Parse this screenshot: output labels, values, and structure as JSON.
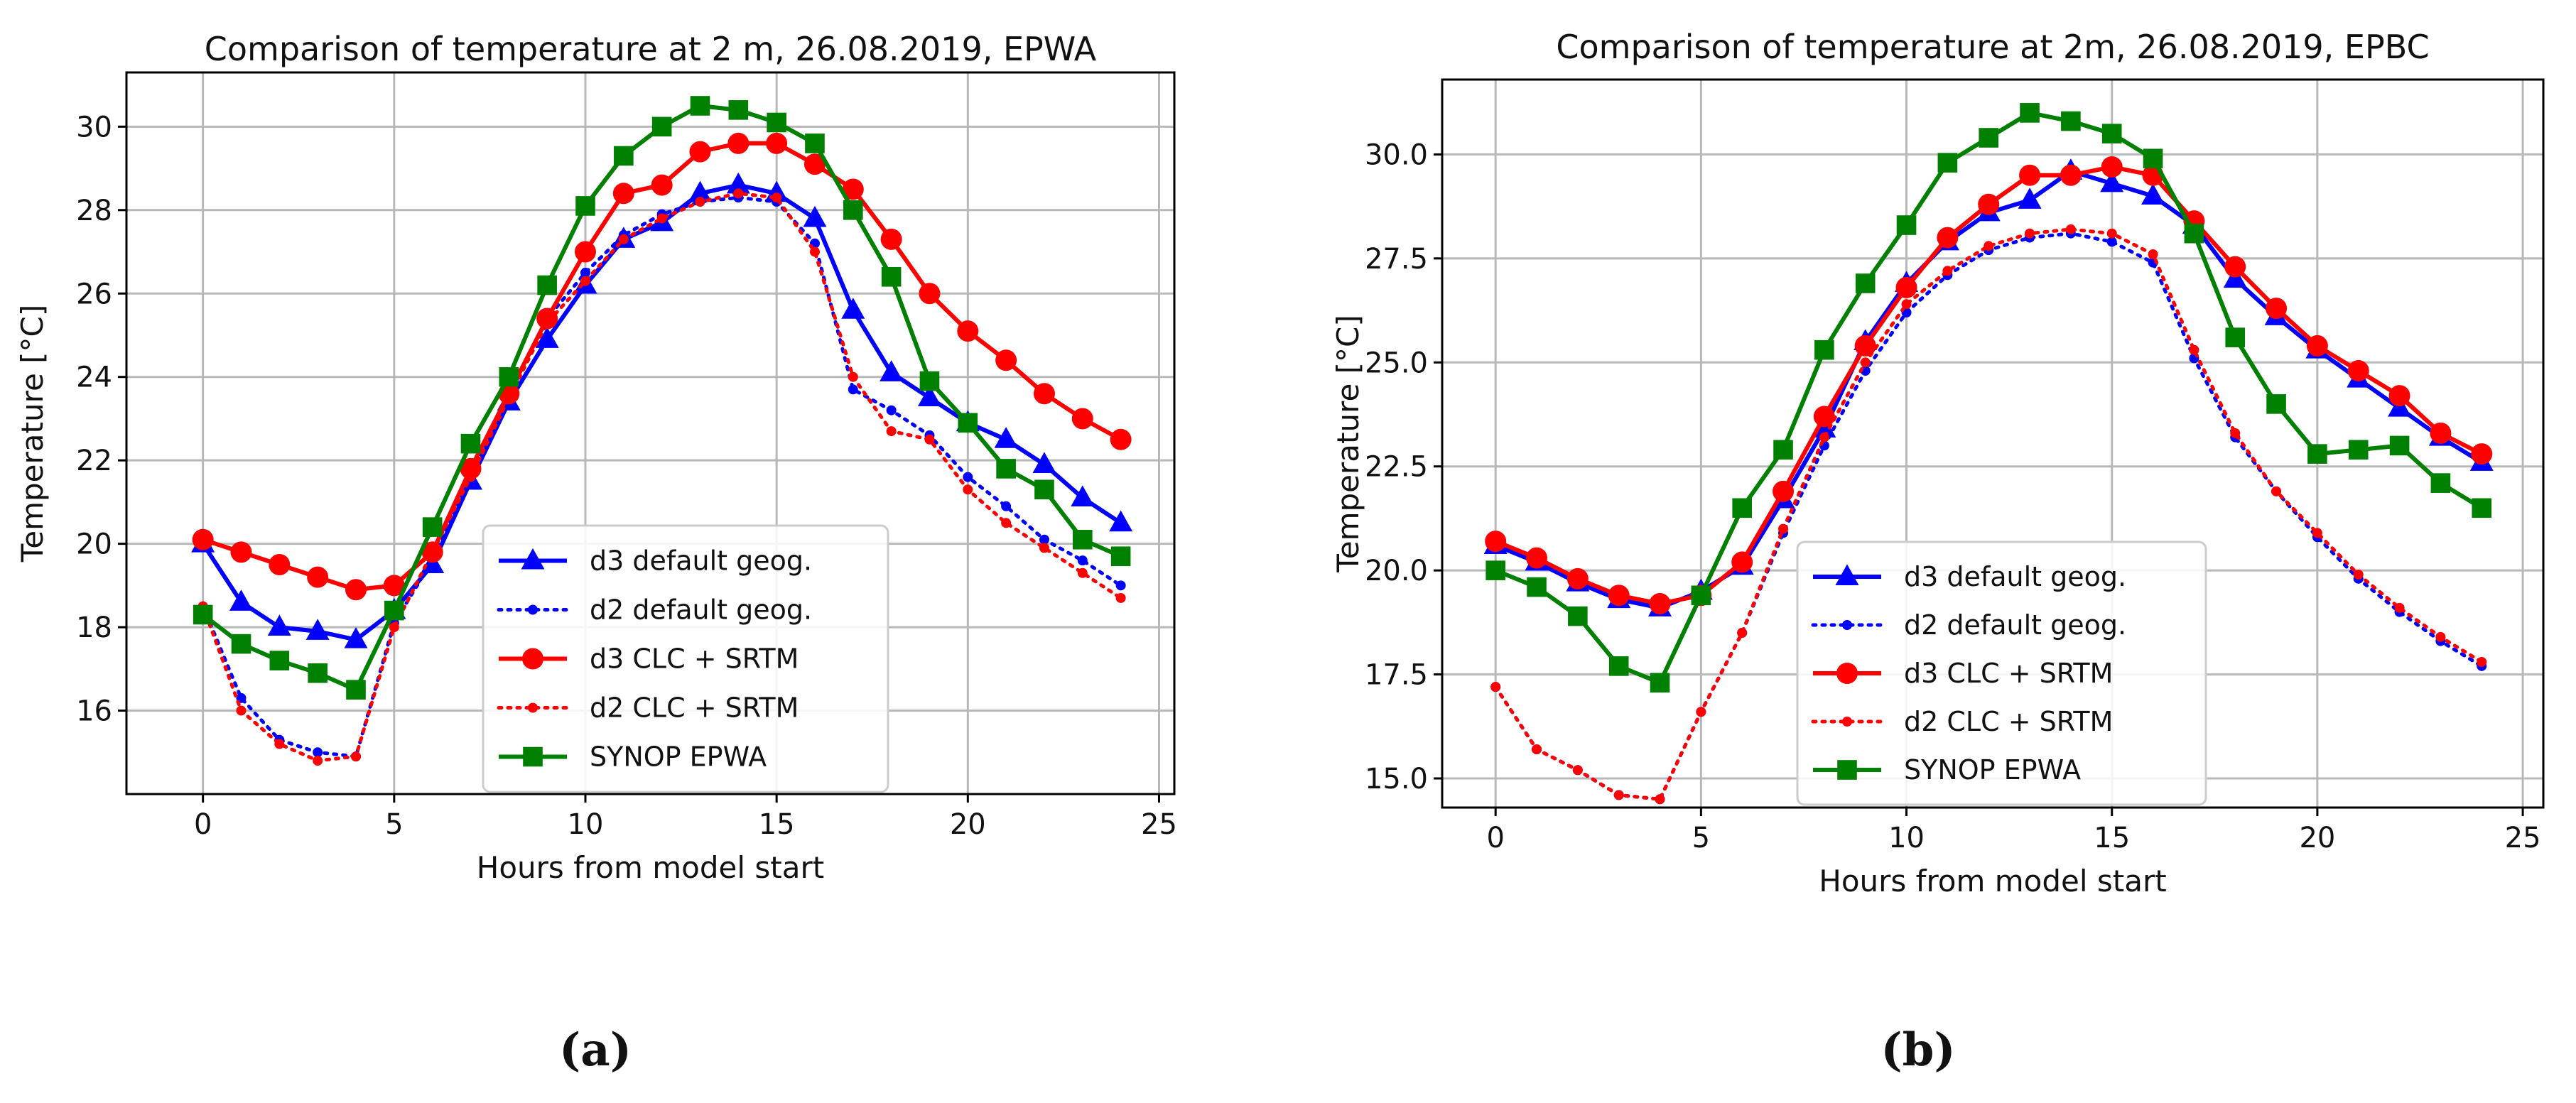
{
  "chart_data": [
    {
      "type": "line",
      "panel_label": "(a)",
      "title": "Comparison of temperature at 2 m, 26.08.2019, EPWA",
      "xlabel": "Hours from model start",
      "ylabel": "Temperature [°C]",
      "xlim": [
        -2.0,
        25.4
      ],
      "ylim": [
        14.0,
        31.3
      ],
      "xticks": [
        0,
        5,
        10,
        15,
        20,
        25
      ],
      "xtick_labels": [
        "0",
        "5",
        "10",
        "15",
        "20",
        "25"
      ],
      "yticks": [
        16,
        18,
        20,
        22,
        24,
        26,
        28,
        30
      ],
      "ytick_labels": [
        "16",
        "18",
        "20",
        "22",
        "24",
        "26",
        "28",
        "30"
      ],
      "grid": true,
      "legend_position": "center-right",
      "x": [
        0,
        1,
        2,
        3,
        4,
        5,
        6,
        7,
        8,
        9,
        10,
        11,
        12,
        13,
        14,
        15,
        16,
        17,
        18,
        19,
        20,
        21,
        22,
        23,
        24
      ],
      "series": [
        {
          "name": "d3 default geog.",
          "color": "#0000ff",
          "style": "solid",
          "marker": "triangle",
          "values": [
            20.0,
            18.6,
            18.0,
            17.9,
            17.7,
            18.4,
            19.5,
            21.5,
            23.4,
            24.9,
            26.2,
            27.3,
            27.7,
            28.4,
            28.6,
            28.4,
            27.8,
            25.6,
            24.1,
            23.5,
            22.9,
            22.5,
            21.9,
            21.1,
            20.5
          ]
        },
        {
          "name": "d2 default geog.",
          "color": "#0000ff",
          "style": "dotted",
          "marker": "dot",
          "values": [
            18.5,
            16.3,
            15.3,
            15.0,
            14.9,
            18.1,
            19.6,
            21.6,
            23.6,
            25.4,
            26.5,
            27.4,
            27.9,
            28.2,
            28.3,
            28.2,
            27.2,
            23.7,
            23.2,
            22.6,
            21.6,
            20.9,
            20.1,
            19.6,
            19.0
          ]
        },
        {
          "name": "d3 CLC + SRTM",
          "color": "#ff0000",
          "style": "solid",
          "marker": "circle",
          "values": [
            20.1,
            19.8,
            19.5,
            19.2,
            18.9,
            19.0,
            19.8,
            21.8,
            23.6,
            25.4,
            27.0,
            28.4,
            28.6,
            29.4,
            29.6,
            29.6,
            29.1,
            28.5,
            27.3,
            26.0,
            25.1,
            24.4,
            23.6,
            23.0,
            22.5
          ]
        },
        {
          "name": "d2 CLC + SRTM",
          "color": "#ff0000",
          "style": "dotted",
          "marker": "dot",
          "values": [
            18.5,
            16.0,
            15.2,
            14.8,
            14.9,
            18.0,
            19.8,
            21.6,
            23.5,
            25.3,
            26.3,
            27.3,
            27.8,
            28.2,
            28.4,
            28.3,
            27.0,
            24.0,
            22.7,
            22.5,
            21.3,
            20.5,
            19.9,
            19.3,
            18.7
          ]
        },
        {
          "name": "SYNOP EPWA",
          "color": "#008000",
          "style": "solid",
          "marker": "square",
          "values": [
            18.3,
            17.6,
            17.2,
            16.9,
            16.5,
            18.4,
            20.4,
            22.4,
            24.0,
            26.2,
            28.1,
            29.3,
            30.0,
            30.5,
            30.4,
            30.1,
            29.6,
            28.0,
            26.4,
            23.9,
            22.9,
            21.8,
            21.3,
            20.1,
            19.7
          ]
        }
      ]
    },
    {
      "type": "line",
      "panel_label": "(b)",
      "title": "Comparison of temperature at 2m, 26.08.2019, EPBC",
      "xlabel": "Hours from model start",
      "ylabel": "Temperature [°C]",
      "xlim": [
        -1.3,
        25.5
      ],
      "ylim": [
        14.3,
        31.8
      ],
      "xticks": [
        0,
        5,
        10,
        15,
        20,
        25
      ],
      "xtick_labels": [
        "0",
        "5",
        "10",
        "15",
        "20",
        "25"
      ],
      "yticks": [
        15.0,
        17.5,
        20.0,
        22.5,
        25.0,
        27.5,
        30.0
      ],
      "ytick_labels": [
        "15.0",
        "17.5",
        "20.0",
        "22.5",
        "25.0",
        "27.5",
        "30.0"
      ],
      "grid": true,
      "legend_position": "lower-center",
      "x": [
        0,
        1,
        2,
        3,
        4,
        5,
        6,
        7,
        8,
        9,
        10,
        11,
        12,
        13,
        14,
        15,
        16,
        17,
        18,
        19,
        20,
        21,
        22,
        23,
        24
      ],
      "series": [
        {
          "name": "d3 default geog.",
          "color": "#0000ff",
          "style": "solid",
          "marker": "triangle",
          "values": [
            20.6,
            20.2,
            19.7,
            19.3,
            19.1,
            19.5,
            20.1,
            21.7,
            23.4,
            25.5,
            26.9,
            27.9,
            28.6,
            28.9,
            29.6,
            29.3,
            29.0,
            28.3,
            27.0,
            26.1,
            25.3,
            24.6,
            23.9,
            23.2,
            22.6
          ]
        },
        {
          "name": "d2 default geog.",
          "color": "#0000ff",
          "style": "dotted",
          "marker": "dot",
          "values": [
            17.2,
            15.7,
            15.2,
            14.6,
            14.5,
            16.6,
            18.5,
            20.9,
            23.0,
            24.8,
            26.2,
            27.1,
            27.7,
            28.0,
            28.1,
            27.9,
            27.4,
            25.1,
            23.2,
            21.9,
            20.8,
            19.8,
            19.0,
            18.3,
            17.7
          ]
        },
        {
          "name": "d3 CLC + SRTM",
          "color": "#ff0000",
          "style": "solid",
          "marker": "circle",
          "values": [
            20.7,
            20.3,
            19.8,
            19.4,
            19.2,
            19.4,
            20.2,
            21.9,
            23.7,
            25.4,
            26.8,
            28.0,
            28.8,
            29.5,
            29.5,
            29.7,
            29.5,
            28.4,
            27.3,
            26.3,
            25.4,
            24.8,
            24.2,
            23.3,
            22.8
          ]
        },
        {
          "name": "d2 CLC + SRTM",
          "color": "#ff0000",
          "style": "dotted",
          "marker": "dot",
          "values": [
            17.2,
            15.7,
            15.2,
            14.6,
            14.5,
            16.6,
            18.5,
            21.0,
            23.2,
            25.0,
            26.4,
            27.2,
            27.8,
            28.1,
            28.2,
            28.1,
            27.6,
            25.3,
            23.3,
            21.9,
            20.9,
            19.9,
            19.1,
            18.4,
            17.8
          ]
        },
        {
          "name": "SYNOP EPWA",
          "color": "#008000",
          "style": "solid",
          "marker": "square",
          "values": [
            20.0,
            19.6,
            18.9,
            17.7,
            17.3,
            19.4,
            21.5,
            22.9,
            25.3,
            26.9,
            28.3,
            29.8,
            30.4,
            31.0,
            30.8,
            30.5,
            29.9,
            28.1,
            25.6,
            24.0,
            22.8,
            22.9,
            23.0,
            22.1,
            21.5
          ]
        }
      ]
    }
  ]
}
